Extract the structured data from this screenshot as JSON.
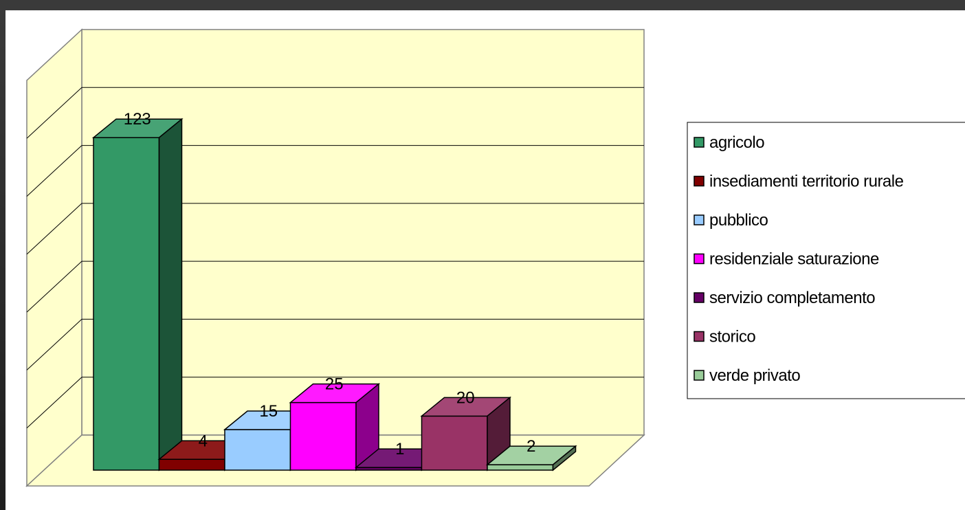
{
  "chart_data": {
    "type": "bar",
    "title": "",
    "xlabel": "",
    "ylabel": "",
    "ylim": [
      0,
      150
    ],
    "grid": true,
    "legend_position": "right",
    "plot_wall_color": "#ffffcc",
    "categories": [
      "agricolo",
      "insediamenti territorio rurale",
      "pubblico",
      "residenziale saturazione",
      "servizio completamento",
      "storico",
      "verde privato"
    ],
    "series": [
      {
        "label": "agricolo",
        "value": 123,
        "color": "#339966"
      },
      {
        "label": "insediamenti territorio rurale",
        "value": 4,
        "color": "#800000"
      },
      {
        "label": "pubblico",
        "value": 15,
        "color": "#99ccff"
      },
      {
        "label": "residenziale saturazione",
        "value": 25,
        "color": "#ff00ff"
      },
      {
        "label": "servizio completamento",
        "value": 1,
        "color": "#660066"
      },
      {
        "label": "storico",
        "value": 20,
        "color": "#993366"
      },
      {
        "label": "verde privato",
        "value": 2,
        "color": "#99cc99"
      }
    ]
  }
}
